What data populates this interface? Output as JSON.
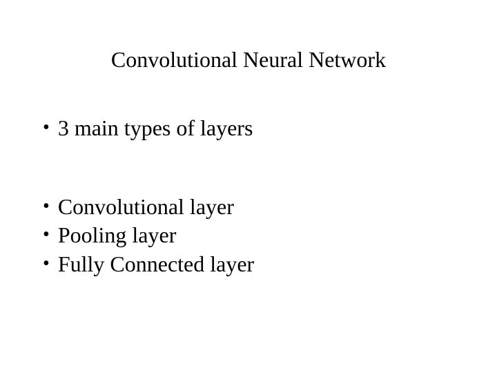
{
  "slide": {
    "title": "Convolutional Neural Network",
    "bullets_group1": [
      {
        "text": "3 main types of layers"
      }
    ],
    "bullets_group2": [
      {
        "text": "Convolutional layer"
      },
      {
        "text": "Pooling layer"
      },
      {
        "text": "Fully Connected layer"
      }
    ]
  },
  "style": {
    "background_color": "#ffffff",
    "text_color": "#000000",
    "title_fontsize": 32,
    "body_fontsize": 32,
    "font_family": "Times New Roman",
    "bullet_char": "•"
  }
}
